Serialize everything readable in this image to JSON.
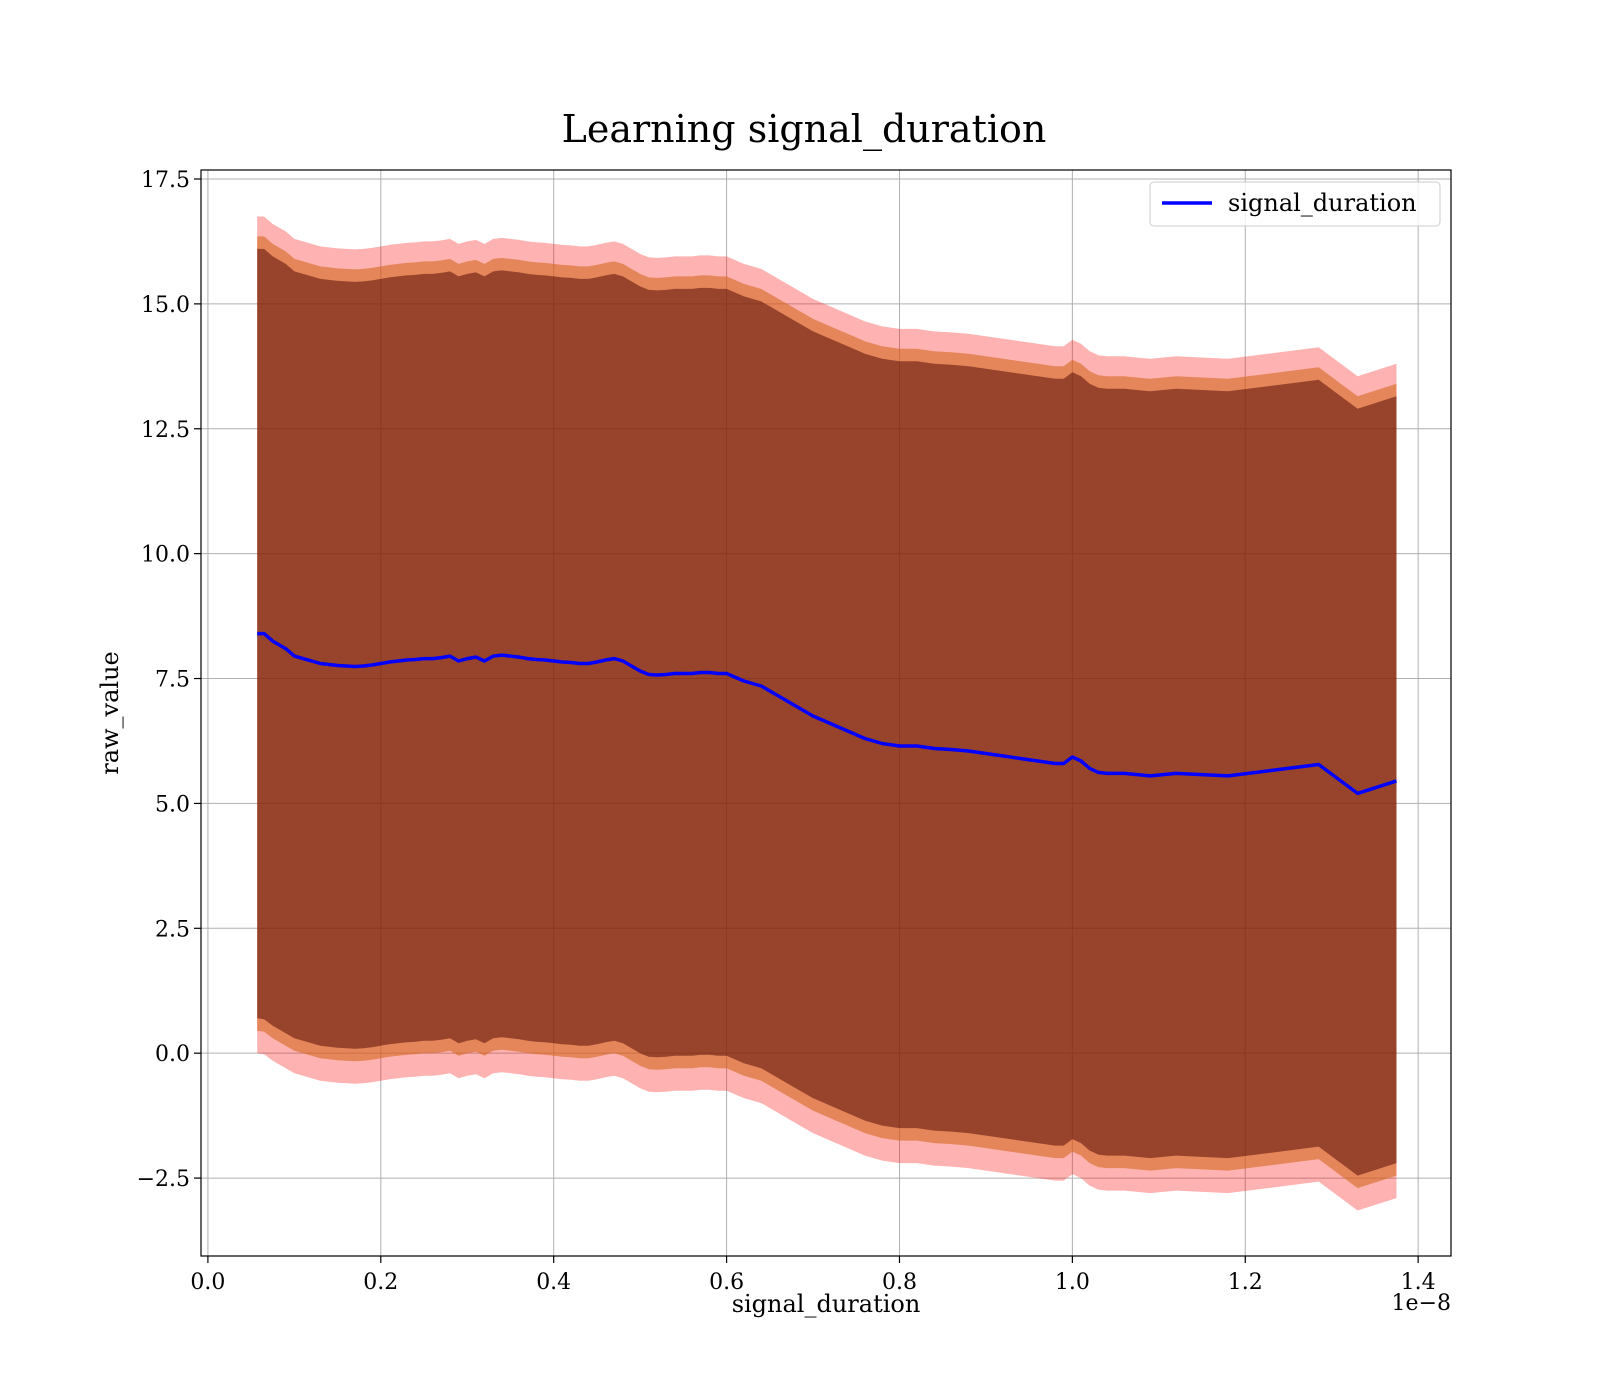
{
  "chart_data": {
    "type": "line",
    "title": "Learning signal_duration",
    "xlabel": "signal_duration",
    "ylabel": "raw_value",
    "x_offset_text": "1e−8",
    "xlim": [
      -0.008,
      1.438
    ],
    "ylim": [
      -4.06,
      17.68
    ],
    "xticks": [
      0.0,
      0.2,
      0.4,
      0.6,
      0.8,
      1.0,
      1.2,
      1.4
    ],
    "xtick_labels": [
      "0.0",
      "0.2",
      "0.4",
      "0.6",
      "0.8",
      "1.0",
      "1.2",
      "1.4"
    ],
    "yticks": [
      -2.5,
      0.0,
      2.5,
      5.0,
      7.5,
      10.0,
      12.5,
      15.0,
      17.5
    ],
    "ytick_labels": [
      "−2.5",
      "0.0",
      "2.5",
      "5.0",
      "7.5",
      "10.0",
      "12.5",
      "15.0",
      "17.5"
    ],
    "grid": true,
    "legend_position": "upper right",
    "colors": {
      "line": "#0000ff",
      "band_outer": "#ff0000",
      "band_middle": "#d2691e",
      "band_inner": "#4b0000"
    },
    "series": [
      {
        "name": "signal_duration",
        "x": [
          0.057,
          0.065,
          0.075,
          0.09,
          0.1,
          0.11,
          0.12,
          0.13,
          0.14,
          0.15,
          0.16,
          0.17,
          0.18,
          0.19,
          0.2,
          0.21,
          0.22,
          0.23,
          0.24,
          0.25,
          0.26,
          0.27,
          0.28,
          0.29,
          0.3,
          0.31,
          0.32,
          0.33,
          0.34,
          0.35,
          0.36,
          0.37,
          0.38,
          0.39,
          0.4,
          0.41,
          0.42,
          0.43,
          0.44,
          0.45,
          0.46,
          0.47,
          0.48,
          0.49,
          0.5,
          0.51,
          0.52,
          0.53,
          0.54,
          0.55,
          0.56,
          0.57,
          0.58,
          0.59,
          0.6,
          0.62,
          0.64,
          0.66,
          0.68,
          0.7,
          0.72,
          0.74,
          0.76,
          0.78,
          0.8,
          0.82,
          0.84,
          0.86,
          0.88,
          0.9,
          0.92,
          0.94,
          0.96,
          0.98,
          0.99,
          1.0,
          1.01,
          1.02,
          1.03,
          1.04,
          1.06,
          1.09,
          1.12,
          1.18,
          1.24,
          1.285,
          1.33,
          1.375
        ],
        "y": [
          8.4,
          8.4,
          8.25,
          8.1,
          7.95,
          7.9,
          7.85,
          7.8,
          7.78,
          7.76,
          7.75,
          7.74,
          7.75,
          7.77,
          7.8,
          7.83,
          7.85,
          7.87,
          7.88,
          7.9,
          7.9,
          7.92,
          7.95,
          7.85,
          7.9,
          7.93,
          7.85,
          7.95,
          7.97,
          7.95,
          7.93,
          7.9,
          7.88,
          7.87,
          7.85,
          7.83,
          7.82,
          7.8,
          7.8,
          7.83,
          7.87,
          7.9,
          7.85,
          7.75,
          7.65,
          7.58,
          7.57,
          7.58,
          7.6,
          7.6,
          7.6,
          7.62,
          7.62,
          7.6,
          7.6,
          7.45,
          7.35,
          7.15,
          6.95,
          6.75,
          6.6,
          6.45,
          6.3,
          6.2,
          6.15,
          6.15,
          6.1,
          6.08,
          6.05,
          6.0,
          5.95,
          5.9,
          5.85,
          5.8,
          5.8,
          5.93,
          5.85,
          5.7,
          5.62,
          5.6,
          5.6,
          5.55,
          5.6,
          5.55,
          5.68,
          5.78,
          5.2,
          5.45
        ],
        "band_inner": {
          "lower": [
            0.7,
            0.68,
            0.55,
            0.4,
            0.3,
            0.25,
            0.2,
            0.15,
            0.13,
            0.11,
            0.1,
            0.09,
            0.1,
            0.12,
            0.15,
            0.18,
            0.2,
            0.22,
            0.23,
            0.25,
            0.25,
            0.27,
            0.3,
            0.2,
            0.25,
            0.28,
            0.2,
            0.3,
            0.32,
            0.3,
            0.28,
            0.25,
            0.23,
            0.22,
            0.2,
            0.18,
            0.17,
            0.15,
            0.15,
            0.18,
            0.22,
            0.25,
            0.2,
            0.1,
            0.0,
            -0.07,
            -0.08,
            -0.07,
            -0.05,
            -0.05,
            -0.05,
            -0.03,
            -0.03,
            -0.05,
            -0.05,
            -0.2,
            -0.3,
            -0.5,
            -0.7,
            -0.9,
            -1.05,
            -1.2,
            -1.35,
            -1.45,
            -1.5,
            -1.5,
            -1.55,
            -1.57,
            -1.6,
            -1.65,
            -1.7,
            -1.75,
            -1.8,
            -1.85,
            -1.85,
            -1.72,
            -1.8,
            -1.95,
            -2.03,
            -2.05,
            -2.05,
            -2.1,
            -2.05,
            -2.1,
            -1.97,
            -1.87,
            -2.45,
            -2.2
          ],
          "upper": [
            16.1,
            16.1,
            15.95,
            15.8,
            15.65,
            15.6,
            15.55,
            15.5,
            15.48,
            15.46,
            15.45,
            15.44,
            15.45,
            15.47,
            15.5,
            15.53,
            15.55,
            15.57,
            15.58,
            15.6,
            15.6,
            15.62,
            15.65,
            15.55,
            15.6,
            15.63,
            15.55,
            15.65,
            15.67,
            15.65,
            15.63,
            15.6,
            15.58,
            15.57,
            15.55,
            15.53,
            15.52,
            15.5,
            15.5,
            15.53,
            15.57,
            15.6,
            15.55,
            15.45,
            15.35,
            15.28,
            15.27,
            15.28,
            15.3,
            15.3,
            15.3,
            15.32,
            15.32,
            15.3,
            15.3,
            15.15,
            15.05,
            14.85,
            14.65,
            14.45,
            14.3,
            14.15,
            14.0,
            13.9,
            13.85,
            13.85,
            13.8,
            13.78,
            13.75,
            13.7,
            13.65,
            13.6,
            13.55,
            13.5,
            13.5,
            13.63,
            13.55,
            13.4,
            13.32,
            13.3,
            13.3,
            13.25,
            13.3,
            13.25,
            13.38,
            13.48,
            12.9,
            13.15
          ]
        },
        "band_middle": {
          "lower": [
            0.45,
            0.43,
            0.3,
            0.15,
            0.05,
            0.0,
            -0.05,
            -0.1,
            -0.12,
            -0.14,
            -0.15,
            -0.16,
            -0.15,
            -0.13,
            -0.1,
            -0.07,
            -0.05,
            -0.03,
            -0.02,
            0.0,
            0.0,
            0.02,
            0.05,
            -0.05,
            0.0,
            0.03,
            -0.05,
            0.05,
            0.07,
            0.05,
            0.03,
            0.0,
            -0.02,
            -0.03,
            -0.05,
            -0.07,
            -0.08,
            -0.1,
            -0.1,
            -0.07,
            -0.03,
            0.0,
            -0.05,
            -0.15,
            -0.25,
            -0.32,
            -0.33,
            -0.32,
            -0.3,
            -0.3,
            -0.3,
            -0.28,
            -0.28,
            -0.3,
            -0.3,
            -0.45,
            -0.55,
            -0.75,
            -0.95,
            -1.15,
            -1.3,
            -1.45,
            -1.6,
            -1.7,
            -1.75,
            -1.75,
            -1.8,
            -1.82,
            -1.85,
            -1.9,
            -1.95,
            -2.0,
            -2.05,
            -2.1,
            -2.1,
            -1.97,
            -2.05,
            -2.2,
            -2.28,
            -2.3,
            -2.3,
            -2.35,
            -2.3,
            -2.35,
            -2.22,
            -2.12,
            -2.7,
            -2.45
          ],
          "upper": [
            16.35,
            16.35,
            16.2,
            16.05,
            15.9,
            15.85,
            15.8,
            15.75,
            15.73,
            15.71,
            15.7,
            15.69,
            15.7,
            15.72,
            15.75,
            15.78,
            15.8,
            15.82,
            15.83,
            15.85,
            15.85,
            15.87,
            15.9,
            15.8,
            15.85,
            15.88,
            15.8,
            15.9,
            15.92,
            15.9,
            15.88,
            15.85,
            15.83,
            15.82,
            15.8,
            15.78,
            15.77,
            15.75,
            15.75,
            15.78,
            15.82,
            15.85,
            15.8,
            15.7,
            15.6,
            15.53,
            15.52,
            15.53,
            15.55,
            15.55,
            15.55,
            15.57,
            15.57,
            15.55,
            15.55,
            15.4,
            15.3,
            15.1,
            14.9,
            14.7,
            14.55,
            14.4,
            14.25,
            14.15,
            14.1,
            14.1,
            14.05,
            14.03,
            14.0,
            13.95,
            13.9,
            13.85,
            13.8,
            13.75,
            13.75,
            13.88,
            13.8,
            13.65,
            13.57,
            13.55,
            13.55,
            13.5,
            13.55,
            13.5,
            13.63,
            13.73,
            13.15,
            13.4
          ]
        },
        "band_outer": {
          "lower": [
            0.0,
            -0.02,
            -0.15,
            -0.3,
            -0.4,
            -0.45,
            -0.5,
            -0.55,
            -0.57,
            -0.59,
            -0.6,
            -0.61,
            -0.6,
            -0.58,
            -0.55,
            -0.52,
            -0.5,
            -0.48,
            -0.47,
            -0.45,
            -0.45,
            -0.43,
            -0.4,
            -0.5,
            -0.45,
            -0.42,
            -0.5,
            -0.4,
            -0.38,
            -0.4,
            -0.42,
            -0.45,
            -0.47,
            -0.48,
            -0.5,
            -0.52,
            -0.53,
            -0.55,
            -0.55,
            -0.52,
            -0.48,
            -0.45,
            -0.5,
            -0.6,
            -0.7,
            -0.77,
            -0.78,
            -0.77,
            -0.75,
            -0.75,
            -0.75,
            -0.73,
            -0.73,
            -0.75,
            -0.75,
            -0.9,
            -1.0,
            -1.2,
            -1.4,
            -1.6,
            -1.75,
            -1.9,
            -2.05,
            -2.15,
            -2.2,
            -2.2,
            -2.25,
            -2.27,
            -2.3,
            -2.35,
            -2.4,
            -2.45,
            -2.5,
            -2.55,
            -2.55,
            -2.42,
            -2.5,
            -2.65,
            -2.73,
            -2.75,
            -2.75,
            -2.8,
            -2.75,
            -2.8,
            -2.67,
            -2.57,
            -3.15,
            -2.9
          ],
          "upper": [
            16.75,
            16.75,
            16.6,
            16.45,
            16.3,
            16.25,
            16.2,
            16.15,
            16.13,
            16.11,
            16.1,
            16.09,
            16.1,
            16.12,
            16.15,
            16.18,
            16.2,
            16.22,
            16.23,
            16.25,
            16.25,
            16.27,
            16.3,
            16.2,
            16.25,
            16.28,
            16.2,
            16.3,
            16.32,
            16.3,
            16.28,
            16.25,
            16.23,
            16.22,
            16.2,
            16.18,
            16.17,
            16.15,
            16.15,
            16.18,
            16.22,
            16.25,
            16.2,
            16.1,
            16.0,
            15.93,
            15.92,
            15.93,
            15.95,
            15.95,
            15.95,
            15.97,
            15.97,
            15.95,
            15.95,
            15.8,
            15.7,
            15.5,
            15.3,
            15.1,
            14.95,
            14.8,
            14.65,
            14.55,
            14.5,
            14.5,
            14.45,
            14.43,
            14.4,
            14.35,
            14.3,
            14.25,
            14.2,
            14.15,
            14.15,
            14.28,
            14.2,
            14.05,
            13.97,
            13.95,
            13.95,
            13.9,
            13.95,
            13.9,
            14.03,
            14.13,
            13.55,
            13.8
          ]
        }
      }
    ]
  }
}
